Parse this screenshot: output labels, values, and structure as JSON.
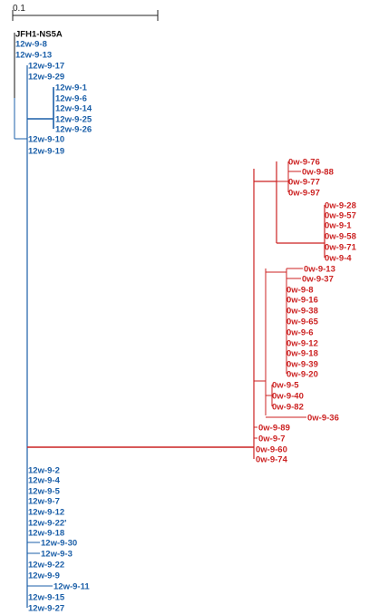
{
  "scale_bar": {
    "label": "0.1"
  },
  "colors": {
    "root": "#111111",
    "blue": "#1b5fa8",
    "red": "#cc2222"
  },
  "tree": {
    "root_label": "JFH1-NS5A",
    "blue_clade": [
      "12w-9-8",
      "12w-9-13",
      "12w-9-17",
      "12w-9-29",
      "12w-9-1",
      "12w-9-6",
      "12w-9-14",
      "12w-9-25",
      "12w-9-26",
      "12w-9-10",
      "12w-9-19",
      "12w-9-2",
      "12w-9-4",
      "12w-9-5",
      "12w-9-7",
      "12w-9-12",
      "12w-9-22'",
      "12w-9-18",
      "12w-9-30",
      "12w-9-3",
      "12w-9-22",
      "12w-9-9",
      "12w-9-11",
      "12w-9-15",
      "12w-9-27"
    ],
    "red_clade": [
      "0w-9-76",
      "0w-9-88",
      "0w-9-77",
      "0w-9-97",
      "0w-9-28",
      "0w-9-57",
      "0w-9-1",
      "0w-9-58",
      "0w-9-71",
      "0w-9-4",
      "0w-9-13",
      "0w-9-37",
      "0w-9-8",
      "0w-9-16",
      "0w-9-38",
      "0w-9-65",
      "0w-9-6",
      "0w-9-12",
      "0w-9-18",
      "0w-9-39",
      "0w-9-20",
      "0w-9-5",
      "0w-9-40",
      "0w-9-82",
      "0w-9-36",
      "0w-9-89",
      "0w-9-7",
      "0w-9-60",
      "0w-9-74"
    ]
  }
}
